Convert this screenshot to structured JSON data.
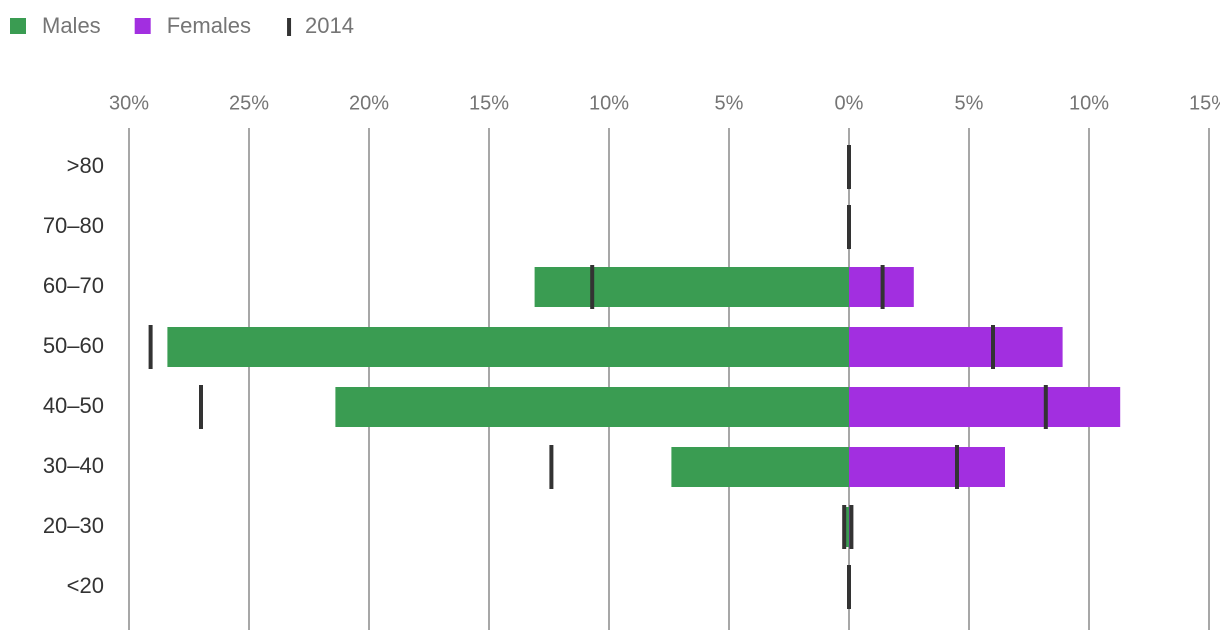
{
  "chart_data": {
    "type": "pyramid",
    "categories": [
      ">80",
      "70–80",
      "60–70",
      "50–60",
      "40–50",
      "30–40",
      "20–30",
      "<20"
    ],
    "series": [
      {
        "name": "Males",
        "color": "#3a9c52",
        "values": [
          0,
          0,
          -13.1,
          -28.4,
          -21.4,
          -7.4,
          -0.2,
          0
        ]
      },
      {
        "name": "Females",
        "color": "#a22fe0",
        "values": [
          0,
          0,
          2.7,
          8.9,
          11.3,
          6.5,
          0.1,
          0
        ]
      }
    ],
    "markers": {
      "name": "2014",
      "color": "#333333",
      "males": [
        0,
        0,
        -10.7,
        -29.1,
        -27.0,
        -12.4,
        -0.2,
        0
      ],
      "females": [
        0,
        0,
        1.4,
        6.0,
        8.2,
        4.5,
        0.1,
        0
      ]
    },
    "xlim": [
      -30,
      15
    ],
    "xticks": [
      {
        "value": -30,
        "label": "30%"
      },
      {
        "value": -25,
        "label": "25%"
      },
      {
        "value": -20,
        "label": "20%"
      },
      {
        "value": -15,
        "label": "15%"
      },
      {
        "value": -10,
        "label": "10%"
      },
      {
        "value": -5,
        "label": "5%"
      },
      {
        "value": 0,
        "label": "0%"
      },
      {
        "value": 5,
        "label": "5%"
      },
      {
        "value": 10,
        "label": "10%"
      },
      {
        "value": 15,
        "label": "15%"
      }
    ],
    "grid": true
  }
}
